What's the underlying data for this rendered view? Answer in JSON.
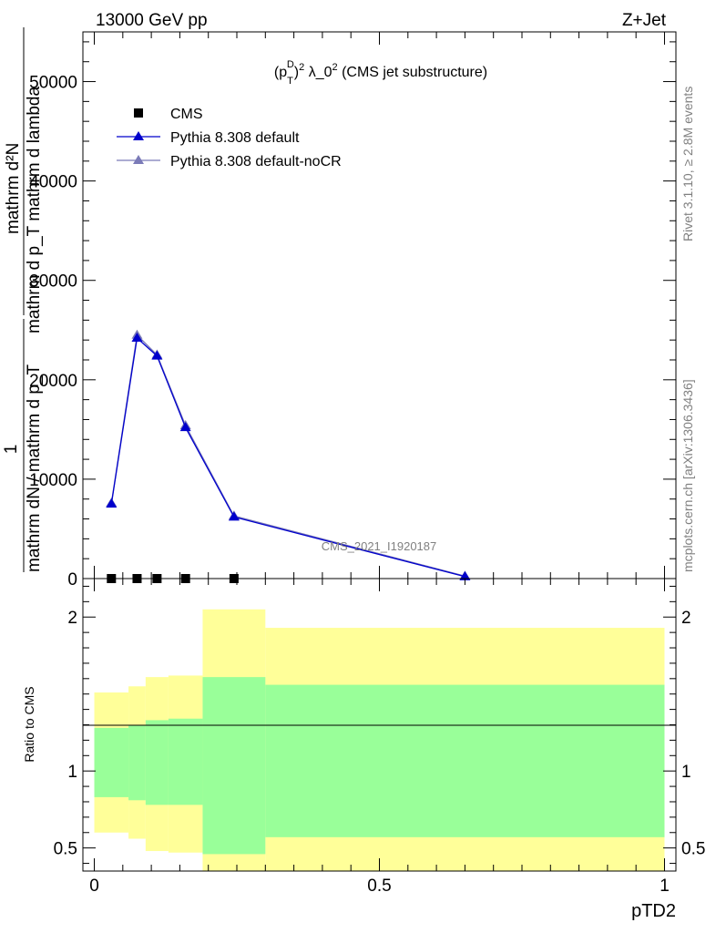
{
  "header": {
    "left": "13000 GeV pp",
    "right": "Z+Jet"
  },
  "side_labels": {
    "rivet": "Rivet 3.1.10, ≥ 2.8M events",
    "mcplots": "mcplots.cern.ch [arXiv:1306.3436]"
  },
  "watermark": "CMS_2021_I1920187",
  "chart_data": [
    {
      "type": "line",
      "title": "(p_T^D)^2 λ_0^2 (CMS jet substructure)",
      "title_parts": {
        "pre": "(p",
        "sub": "T",
        "sup": "D",
        "mid": ")",
        "sup2": "2",
        "post": " λ_0",
        "sup3": "2",
        "tail": " (CMS jet substructure)"
      },
      "ylabel_top": "mathrm d²N",
      "ylabel_bottom": "mathrm d p_T mathrm d lambda",
      "ylabel_outer_num": "1",
      "ylabel_outer_den": "mathrm dN / mathrm d p_T",
      "xlim": [
        -0.02,
        1.02
      ],
      "ylim": [
        0,
        55000
      ],
      "yticks": [
        0,
        10000,
        20000,
        30000,
        40000,
        50000
      ],
      "ytick_labels": [
        "0",
        "10000",
        "20000",
        "30000",
        "40000",
        "50000"
      ],
      "legend": [
        {
          "name": "CMS",
          "color": "#000000",
          "marker": "square"
        },
        {
          "name": "Pythia 8.308 default",
          "color": "#0000cc",
          "marker": "triangle"
        },
        {
          "name": "Pythia 8.308 default-noCR",
          "color": "#7b7bb8",
          "marker": "triangle"
        }
      ],
      "series": [
        {
          "name": "CMS",
          "x": [
            0.03,
            0.075,
            0.11,
            0.16,
            0.245
          ],
          "y": [
            0,
            0,
            0,
            0,
            0
          ]
        },
        {
          "name": "Pythia 8.308 default",
          "x": [
            0.03,
            0.075,
            0.11,
            0.16,
            0.245,
            0.65
          ],
          "y": [
            7500,
            24200,
            22400,
            15200,
            6200,
            200
          ]
        },
        {
          "name": "Pythia 8.308 default-noCR",
          "x": [
            0.03,
            0.075,
            0.11,
            0.16,
            0.245,
            0.65
          ],
          "y": [
            7600,
            24500,
            22500,
            15400,
            6300,
            250
          ]
        }
      ]
    },
    {
      "type": "area",
      "ylabel": "Ratio to CMS",
      "xlabel": "pTD2",
      "xlim": [
        -0.02,
        1.02
      ],
      "ylim": [
        0.35,
        2.25
      ],
      "yticks": [
        0.5,
        1,
        2
      ],
      "ytick_labels": [
        "0.5",
        "1",
        "2"
      ],
      "xticks": [
        0,
        0.5,
        1
      ],
      "xtick_labels": [
        "0",
        "0.5",
        "1"
      ],
      "bands": {
        "edges": [
          0.0,
          0.06,
          0.09,
          0.13,
          0.19,
          0.3,
          1.0
        ],
        "yellow_low": [
          0.6,
          0.56,
          0.48,
          0.47,
          0.35,
          0.35
        ],
        "yellow_high": [
          1.51,
          1.55,
          1.61,
          1.62,
          2.05,
          1.93
        ],
        "green_low": [
          0.83,
          0.81,
          0.78,
          0.78,
          0.46,
          0.57
        ],
        "green_high": [
          1.28,
          1.3,
          1.33,
          1.34,
          1.61,
          1.56
        ]
      },
      "colors": {
        "yellow": "#ffff99",
        "green": "#99ff99"
      }
    }
  ]
}
